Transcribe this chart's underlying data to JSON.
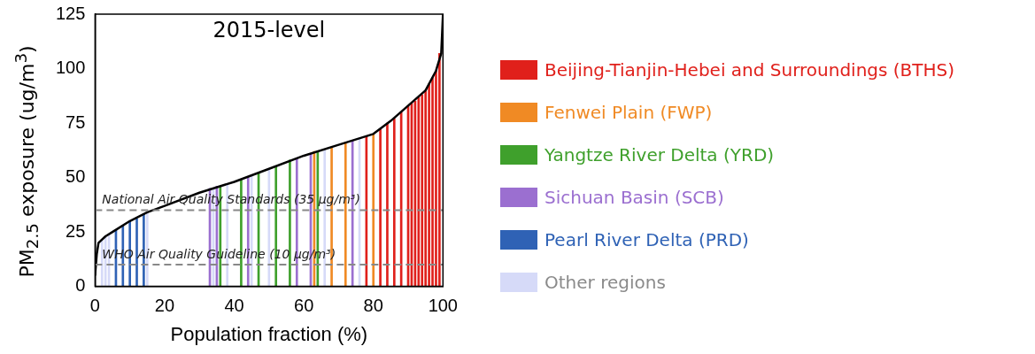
{
  "chart_data": {
    "type": "line",
    "title": "2015-level",
    "xlabel": "Population fraction (%)",
    "ylabel": "PM$_{2.5}$ exposure (ug/m$^{3}$)",
    "xlim": [
      0,
      100
    ],
    "xticks": [
      0,
      20,
      40,
      60,
      80,
      100
    ],
    "ylim": [
      0,
      125
    ],
    "yticks": [
      0,
      25,
      50,
      75,
      100,
      125
    ],
    "grid": false,
    "legend": "right",
    "marker": "none",
    "series": [
      {
        "name": "Beijing-Tianjin-Hebei and Surroundings (BTHS)",
        "type": "bar",
        "color": "#e0201b",
        "x": [
          78,
          82,
          84,
          86,
          88,
          90,
          91,
          92,
          93,
          94,
          95,
          96,
          97,
          98,
          99
        ],
        "values": [
          69,
          72,
          75,
          77,
          80,
          83,
          84,
          85,
          87,
          88,
          90,
          93,
          96,
          99,
          107
        ]
      },
      {
        "name": "Fenwei Plain (FWP)",
        "type": "bar",
        "color": "#f08a24",
        "x": [
          63,
          68,
          72,
          80
        ],
        "values": [
          62,
          64,
          66,
          70
        ]
      },
      {
        "name": "Yangtze River Delta (YRD)",
        "type": "bar",
        "color": "#3fa02c",
        "x": [
          36,
          42,
          47,
          52,
          56,
          64
        ],
        "values": [
          46,
          49,
          52,
          55,
          58,
          62
        ]
      },
      {
        "name": "Sichuan Basin (SCB)",
        "type": "bar",
        "color": "#9b6fd0",
        "x": [
          33,
          35,
          44,
          58,
          62,
          74
        ],
        "values": [
          45,
          46,
          50,
          59,
          61,
          67
        ]
      },
      {
        "name": "Pearl River Delta (PRD)",
        "type": "bar",
        "color": "#2f62b5",
        "x": [
          6,
          8,
          10,
          12,
          14
        ],
        "values": [
          26,
          28,
          30,
          31,
          33
        ]
      },
      {
        "name": "Other regions",
        "type": "bar",
        "color": "#d6daf8",
        "x": [
          2,
          3,
          4,
          15,
          34,
          38,
          45,
          50,
          66,
          76
        ],
        "values": [
          21,
          23,
          24,
          34,
          45,
          47,
          51,
          54,
          63,
          68
        ]
      },
      {
        "color": "#000000",
        "line_style": "solid",
        "x": [
          0,
          0.5,
          1,
          3,
          5,
          10,
          15,
          20,
          30,
          40,
          50,
          60,
          70,
          80,
          85,
          90,
          95,
          98,
          99.5,
          100
        ],
        "values": [
          5,
          15,
          20,
          23,
          25,
          30,
          34,
          37,
          43,
          48,
          54,
          60,
          65,
          70,
          76,
          83,
          90,
          99,
          107,
          125
        ]
      }
    ],
    "ref_lines": [
      {
        "axis": "y",
        "value": 35,
        "label": "National Air Quality Standards (35 µg/m³)",
        "color": "#888888",
        "line_style": "dashed"
      },
      {
        "axis": "y",
        "value": 10,
        "label": "WHO Air Quality Guideline (10 µg/m³)",
        "color": "#888888",
        "line_style": "dashed"
      }
    ]
  }
}
